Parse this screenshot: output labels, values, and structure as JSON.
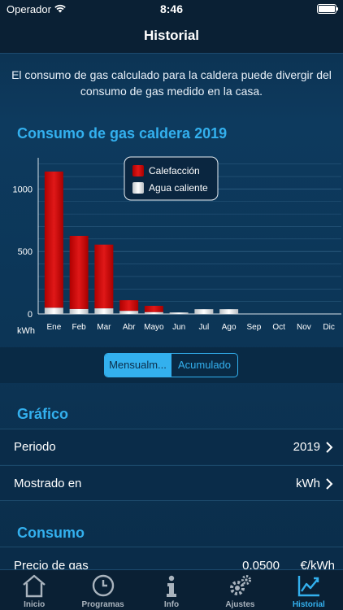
{
  "status_bar": {
    "carrier": "Operador",
    "time": "8:46"
  },
  "nav": {
    "title": "Historial"
  },
  "notice": "El consumo de gas calculado para la caldera puede divergir del consumo de gas medido en la casa.",
  "chart_data": {
    "type": "bar",
    "title": "Consumo de gas caldera 2019",
    "ylabel": "kWh",
    "xlabel": "",
    "ylim": [
      0,
      1250
    ],
    "yticks": [
      0,
      500,
      1000
    ],
    "categories": [
      "Ene",
      "Feb",
      "Mar",
      "Abr",
      "Mayo",
      "Jun",
      "Jul",
      "Ago",
      "Sep",
      "Oct",
      "Nov",
      "Dic"
    ],
    "stacked": true,
    "grid": true,
    "legend_position": "top-center",
    "series": [
      {
        "name": "Agua caliente",
        "color": "#e8e8e8",
        "values": [
          50,
          40,
          45,
          25,
          15,
          12,
          38,
          38,
          0,
          0,
          0,
          0
        ]
      },
      {
        "name": "Calefacción",
        "color": "#d40f0f",
        "values": [
          1090,
          585,
          510,
          85,
          50,
          0,
          0,
          0,
          0,
          0,
          0,
          0
        ]
      }
    ]
  },
  "segmented": {
    "monthly": "Mensualm...",
    "cumulative": "Acumulado"
  },
  "grafico": {
    "header": "Gráfico",
    "period_label": "Periodo",
    "period_value": "2019",
    "shown_label": "Mostrado en",
    "shown_value": "kWh"
  },
  "consumo": {
    "header": "Consumo",
    "price_label": "Precio de gas",
    "price_value": "0,0500",
    "price_unit": "€/kWh"
  },
  "tabs": [
    {
      "label": "Inicio",
      "icon": "home-icon"
    },
    {
      "label": "Programas",
      "icon": "clock-icon"
    },
    {
      "label": "Info",
      "icon": "info-icon"
    },
    {
      "label": "Ajustes",
      "icon": "gears-icon"
    },
    {
      "label": "Historial",
      "icon": "chart-icon"
    }
  ],
  "colors": {
    "accent": "#33b0ee",
    "background": "#0c3556"
  }
}
